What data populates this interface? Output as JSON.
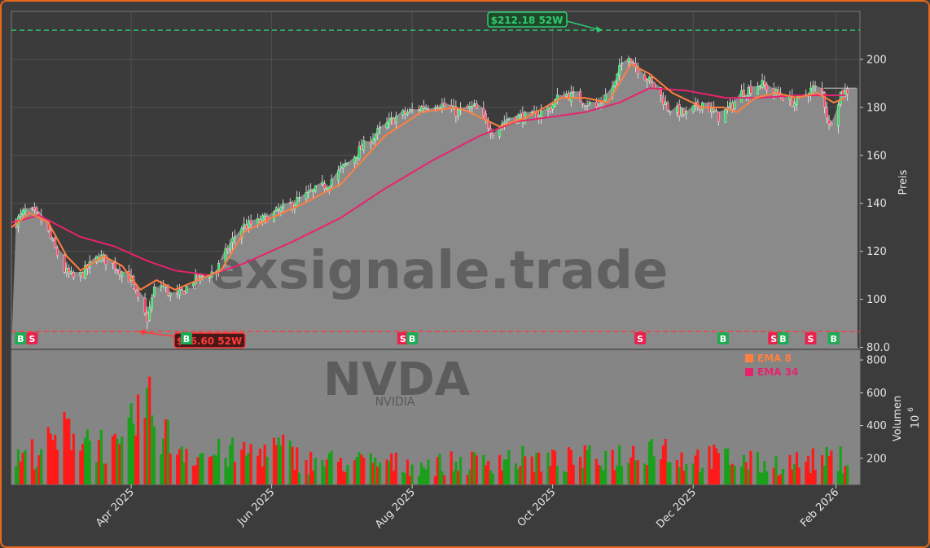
{
  "chart_data": {
    "type": "candlestick",
    "ticker": "NVDA",
    "ticker_sub": "NVIDIA",
    "watermark": "forexsignale.trade",
    "price_axis_label": "Preis",
    "volume_axis_label": "Volumen",
    "volume_multiplier": "10",
    "volume_multiplier_exp": "6",
    "x_ticks": [
      "Apr 2025",
      "Jun 2025",
      "Aug 2025",
      "Oct 2025",
      "Dec 2025",
      "Feb 2026"
    ],
    "y_ticks": [
      "80.0",
      "100",
      "120",
      "140",
      "160",
      "180",
      "200"
    ],
    "volume_ticks": [
      "200",
      "400",
      "600",
      "800"
    ],
    "price_range": [
      79.5,
      220
    ],
    "volume_range": [
      40,
      860
    ],
    "high_52w": {
      "label": "$212.18 52W",
      "value": 212.18,
      "color": "#2ecc71"
    },
    "low_52w": {
      "label": "$86.60 52W",
      "value": 86.6,
      "color": "#ff3b3b"
    },
    "legend": [
      {
        "name": "EMA 8",
        "color": "#ff7f3f"
      },
      {
        "name": "EMA 34",
        "color": "#e8236e"
      }
    ],
    "signals": [
      {
        "type": "B",
        "date": "2025-02-12"
      },
      {
        "type": "S",
        "date": "2025-02-17"
      },
      {
        "type": "B",
        "date": "2025-04-25"
      },
      {
        "type": "S",
        "date": "2025-07-28"
      },
      {
        "type": "B",
        "date": "2025-08-01"
      },
      {
        "type": "S",
        "date": "2025-11-08"
      },
      {
        "type": "B",
        "date": "2025-12-14"
      },
      {
        "type": "S",
        "date": "2026-01-05"
      },
      {
        "type": "B",
        "date": "2026-01-09"
      },
      {
        "type": "S",
        "date": "2026-01-21"
      },
      {
        "type": "B",
        "date": "2026-01-31"
      }
    ],
    "price_anchors": [
      [
        "2025-02-08",
        130
      ],
      [
        "2025-02-15",
        138
      ],
      [
        "2025-02-22",
        132
      ],
      [
        "2025-03-03",
        112
      ],
      [
        "2025-03-08",
        108
      ],
      [
        "2025-03-18",
        118
      ],
      [
        "2025-03-25",
        114
      ],
      [
        "2025-04-01",
        108
      ],
      [
        "2025-04-05",
        96
      ],
      [
        "2025-04-08",
        92
      ],
      [
        "2025-04-12",
        108
      ],
      [
        "2025-04-20",
        100
      ],
      [
        "2025-04-28",
        108
      ],
      [
        "2025-05-08",
        112
      ],
      [
        "2025-05-18",
        130
      ],
      [
        "2025-05-26",
        132
      ],
      [
        "2025-06-10",
        140
      ],
      [
        "2025-06-25",
        148
      ],
      [
        "2025-07-05",
        158
      ],
      [
        "2025-07-15",
        168
      ],
      [
        "2025-07-25",
        176
      ],
      [
        "2025-08-05",
        180
      ],
      [
        "2025-08-12",
        182
      ],
      [
        "2025-08-20",
        178
      ],
      [
        "2025-08-28",
        180
      ],
      [
        "2025-09-05",
        170
      ],
      [
        "2025-09-12",
        176
      ],
      [
        "2025-09-22",
        176
      ],
      [
        "2025-09-30",
        180
      ],
      [
        "2025-10-05",
        186
      ],
      [
        "2025-10-12",
        184
      ],
      [
        "2025-10-20",
        180
      ],
      [
        "2025-10-28",
        190
      ],
      [
        "2025-11-02",
        204
      ],
      [
        "2025-11-07",
        196
      ],
      [
        "2025-11-13",
        190
      ],
      [
        "2025-11-20",
        180
      ],
      [
        "2025-11-28",
        177
      ],
      [
        "2025-12-05",
        182
      ],
      [
        "2025-12-12",
        176
      ],
      [
        "2025-12-17",
        180
      ],
      [
        "2025-12-22",
        186
      ],
      [
        "2025-12-30",
        190
      ],
      [
        "2026-01-06",
        186
      ],
      [
        "2026-01-14",
        182
      ],
      [
        "2026-01-22",
        188
      ],
      [
        "2026-01-26",
        186
      ],
      [
        "2026-01-29",
        172
      ],
      [
        "2026-02-03",
        186
      ],
      [
        "2026-02-10",
        188
      ]
    ],
    "ema8": [
      [
        "2025-02-08",
        130
      ],
      [
        "2025-02-16",
        136
      ],
      [
        "2025-02-24",
        132
      ],
      [
        "2025-03-04",
        118
      ],
      [
        "2025-03-10",
        112
      ],
      [
        "2025-03-20",
        118
      ],
      [
        "2025-03-28",
        114
      ],
      [
        "2025-04-05",
        104
      ],
      [
        "2025-04-12",
        108
      ],
      [
        "2025-04-20",
        104
      ],
      [
        "2025-04-30",
        108
      ],
      [
        "2025-05-10",
        112
      ],
      [
        "2025-05-20",
        128
      ],
      [
        "2025-06-01",
        134
      ],
      [
        "2025-06-15",
        140
      ],
      [
        "2025-07-01",
        148
      ],
      [
        "2025-07-20",
        168
      ],
      [
        "2025-08-05",
        178
      ],
      [
        "2025-08-20",
        180
      ],
      [
        "2025-08-26",
        178
      ],
      [
        "2025-09-08",
        172
      ],
      [
        "2025-09-20",
        176
      ],
      [
        "2025-10-05",
        184
      ],
      [
        "2025-10-15",
        184
      ],
      [
        "2025-10-25",
        182
      ],
      [
        "2025-11-04",
        198
      ],
      [
        "2025-11-12",
        194
      ],
      [
        "2025-11-22",
        186
      ],
      [
        "2025-12-05",
        180
      ],
      [
        "2025-12-14",
        180
      ],
      [
        "2025-12-20",
        178
      ],
      [
        "2025-12-28",
        184
      ],
      [
        "2026-01-06",
        186
      ],
      [
        "2026-01-15",
        184
      ],
      [
        "2026-01-24",
        186
      ],
      [
        "2026-01-31",
        182
      ],
      [
        "2026-02-05",
        184
      ]
    ],
    "ema34": [
      [
        "2025-02-08",
        132
      ],
      [
        "2025-02-20",
        135
      ],
      [
        "2025-03-10",
        126
      ],
      [
        "2025-03-25",
        122
      ],
      [
        "2025-04-08",
        116
      ],
      [
        "2025-04-20",
        112
      ],
      [
        "2025-05-05",
        110
      ],
      [
        "2025-05-20",
        115
      ],
      [
        "2025-06-10",
        124
      ],
      [
        "2025-07-01",
        134
      ],
      [
        "2025-07-20",
        146
      ],
      [
        "2025-08-10",
        158
      ],
      [
        "2025-08-30",
        168
      ],
      [
        "2025-09-15",
        174
      ],
      [
        "2025-09-30",
        176
      ],
      [
        "2025-10-15",
        178
      ],
      [
        "2025-10-30",
        182
      ],
      [
        "2025-11-12",
        188
      ],
      [
        "2025-11-28",
        187
      ],
      [
        "2025-12-15",
        184
      ],
      [
        "2025-12-30",
        184
      ],
      [
        "2026-01-15",
        185
      ],
      [
        "2026-02-05",
        185
      ]
    ],
    "volume_anchors": [
      [
        "2025-02-08",
        180
      ],
      [
        "2025-02-28",
        300
      ],
      [
        "2025-03-06",
        390
      ],
      [
        "2025-03-14",
        320
      ],
      [
        "2025-03-28",
        230
      ],
      [
        "2025-04-05",
        520
      ],
      [
        "2025-04-10",
        480
      ],
      [
        "2025-04-18",
        300
      ],
      [
        "2025-05-01",
        220
      ],
      [
        "2025-05-20",
        230
      ],
      [
        "2025-06-05",
        260
      ],
      [
        "2025-06-15",
        180
      ],
      [
        "2025-07-01",
        180
      ],
      [
        "2025-07-20",
        170
      ],
      [
        "2025-08-05",
        160
      ],
      [
        "2025-08-25",
        170
      ],
      [
        "2025-09-10",
        200
      ],
      [
        "2025-10-01",
        180
      ],
      [
        "2025-10-20",
        200
      ],
      [
        "2025-11-05",
        230
      ],
      [
        "2025-11-15",
        300
      ],
      [
        "2025-11-25",
        200
      ],
      [
        "2025-12-15",
        200
      ],
      [
        "2026-01-01",
        160
      ],
      [
        "2026-01-20",
        180
      ],
      [
        "2026-02-08",
        200
      ]
    ]
  }
}
